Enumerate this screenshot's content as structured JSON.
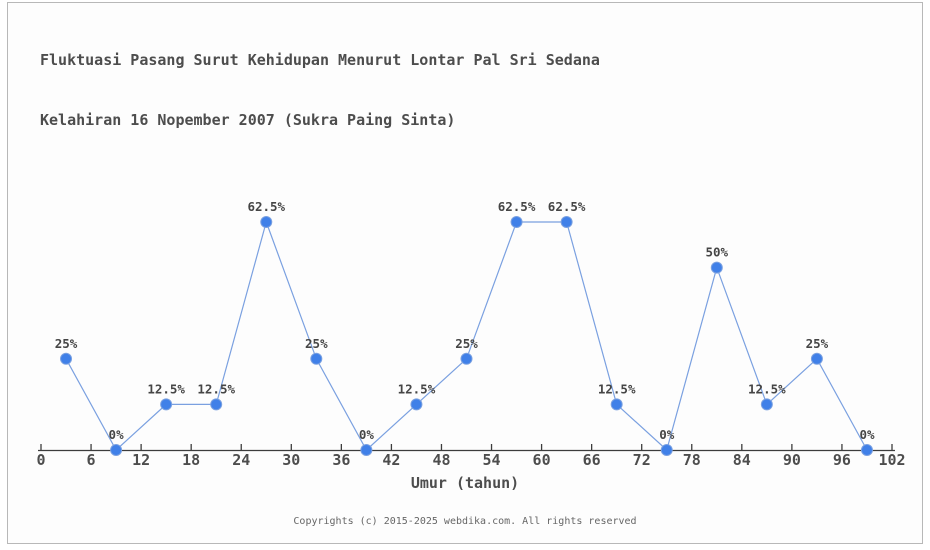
{
  "window": {
    "background": "#fdfdfd",
    "border_color": "#b8b8b8"
  },
  "title": {
    "line1": "Fluktuasi Pasang Surut Kehidupan Menurut Lontar Pal Sri Sedana",
    "line2": "Kelahiran 16 Nopember 2007 (Sukra Paing Sinta)"
  },
  "chart_data": {
    "type": "line",
    "title": "Fluktuasi Pasang Surut Kehidupan Menurut Lontar Pal Sri Sedana Kelahiran 16 Nopember 2007 (Sukra Paing Sinta)",
    "xlabel": "Umur (tahun)",
    "ylabel": "",
    "x": [
      3,
      9,
      15,
      21,
      27,
      33,
      39,
      45,
      51,
      57,
      63,
      69,
      75,
      81,
      87,
      93,
      99
    ],
    "values": [
      25,
      0,
      12.5,
      12.5,
      62.5,
      25,
      0,
      12.5,
      25,
      62.5,
      62.5,
      12.5,
      0,
      50,
      12.5,
      25,
      0
    ],
    "point_labels": [
      "25%",
      "0%",
      "12.5%",
      "12.5%",
      "62.5%",
      "25%",
      "0%",
      "12.5%",
      "25%",
      "62.5%",
      "62.5%",
      "12.5%",
      "0%",
      "50%",
      "12.5%",
      "25%",
      "0%"
    ],
    "x_ticks": [
      0,
      6,
      12,
      18,
      24,
      30,
      36,
      42,
      48,
      54,
      60,
      66,
      72,
      78,
      84,
      90,
      96,
      102
    ],
    "xlim": [
      0,
      102
    ],
    "ylim": [
      0,
      75
    ],
    "grid": false,
    "legend_position": "none",
    "line_color": "#7aa0e0",
    "marker_color": "#4080e8",
    "axis_color": "#3d3d3d",
    "label_color": "#454545",
    "tick_label_color": "#4d4d4d"
  },
  "footer": {
    "copyright": "Copyrights (c) 2015-2025 webdika.com. All rights reserved"
  }
}
